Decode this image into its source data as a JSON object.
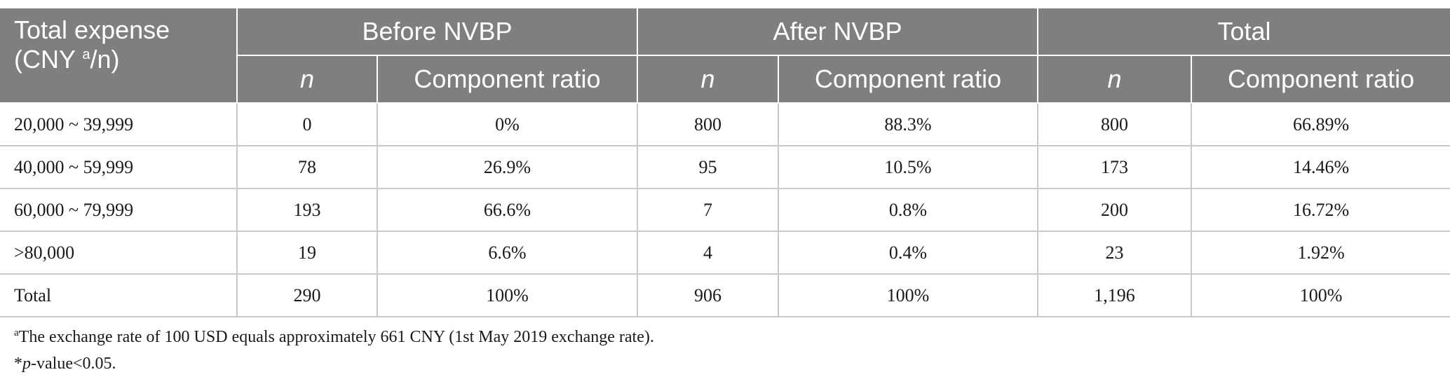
{
  "header": {
    "first_col_label": "Total expense",
    "first_col_unit_prefix": "(CNY ",
    "first_col_unit_sup": "a",
    "first_col_unit_suffix": "/n)",
    "groups": [
      "Before NVBP",
      "After NVBP",
      "Total"
    ],
    "sub_n": "n",
    "sub_ratio": "Component ratio"
  },
  "rows": [
    {
      "label": "20,000 ~ 39,999",
      "before_n": "0",
      "before_ratio": "0%",
      "after_n": "800",
      "after_ratio": "88.3%",
      "total_n": "800",
      "total_ratio": "66.89%"
    },
    {
      "label": "40,000 ~ 59,999",
      "before_n": "78",
      "before_ratio": "26.9%",
      "after_n": "95",
      "after_ratio": "10.5%",
      "total_n": "173",
      "total_ratio": "14.46%"
    },
    {
      "label": "60,000 ~ 79,999",
      "before_n": "193",
      "before_ratio": "66.6%",
      "after_n": "7",
      "after_ratio": "0.8%",
      "total_n": "200",
      "total_ratio": "16.72%"
    },
    {
      "label": ">80,000",
      "before_n": "19",
      "before_ratio": "6.6%",
      "after_n": "4",
      "after_ratio": "0.4%",
      "total_n": "23",
      "total_ratio": "1.92%"
    },
    {
      "label": "Total",
      "before_n": "290",
      "before_ratio": "100%",
      "after_n": "906",
      "after_ratio": "100%",
      "total_n": "1,196",
      "total_ratio": "100%"
    }
  ],
  "footnotes": {
    "note_a_marker": "a",
    "note_a_text": "The exchange rate of 100 USD equals approximately 661 CNY (1st May 2019 exchange rate).",
    "note_b_marker": "*",
    "note_b_italic": "p",
    "note_b_text": "-value<0.05."
  }
}
